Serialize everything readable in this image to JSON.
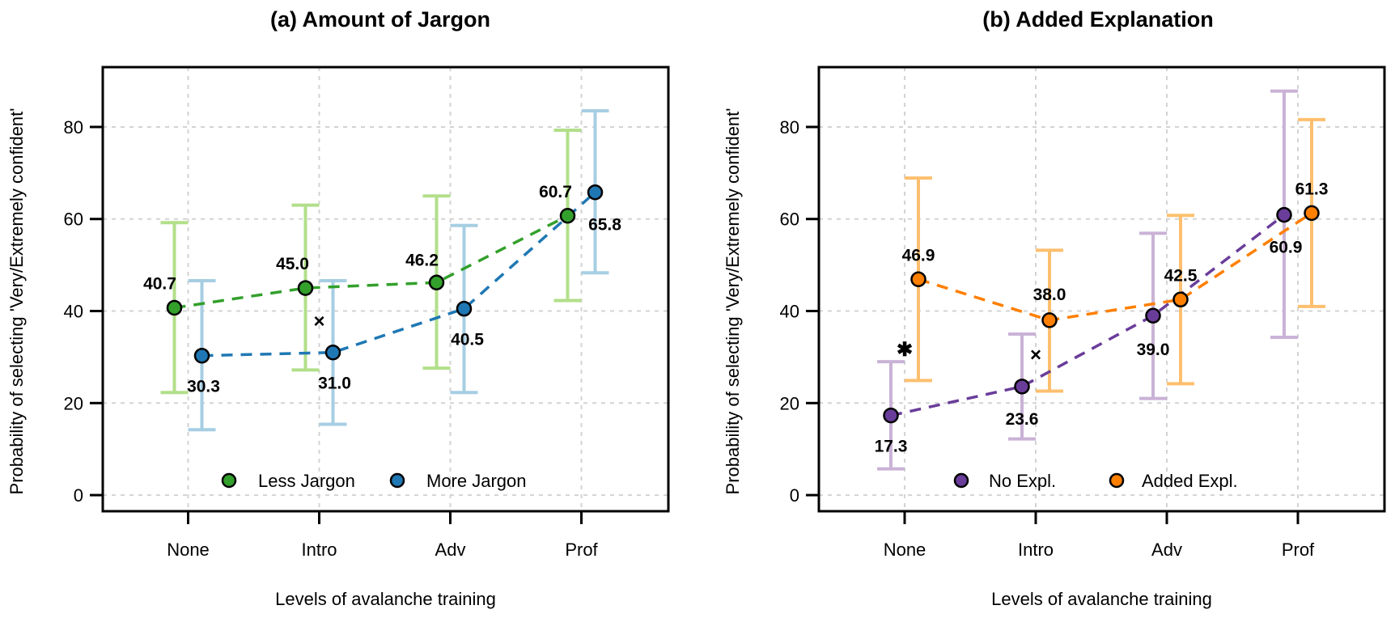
{
  "chart_data": [
    {
      "type": "line",
      "title": "(a) Amount of Jargon",
      "xlabel": "Levels of avalanche training",
      "ylabel": "Probability of selecting 'Very/Extremely confident'",
      "categories": [
        "None",
        "Intro",
        "Adv",
        "Prof"
      ],
      "yticks": [
        0,
        20,
        40,
        60,
        80
      ],
      "ylim": [
        -3.5,
        93
      ],
      "grid": true,
      "legend_position": "bottom-center",
      "series": [
        {
          "name": "Less Jargon",
          "color": "#33a02c",
          "errorbar_color": "#b2df8a",
          "values": [
            40.7,
            45.0,
            46.2,
            60.7
          ],
          "labels": [
            "40.7",
            "45.0",
            "46.2",
            "60.7"
          ],
          "ci_lower": [
            22.3,
            27.2,
            27.6,
            42.3
          ],
          "ci_upper": [
            59.2,
            63.0,
            65.0,
            79.3
          ],
          "label_side": "above"
        },
        {
          "name": "More Jargon",
          "color": "#1f78b4",
          "errorbar_color": "#a6cee3",
          "values": [
            30.3,
            31.0,
            40.5,
            65.8
          ],
          "labels": [
            "30.3",
            "31.0",
            "40.5",
            "65.8"
          ],
          "ci_lower": [
            14.2,
            15.4,
            22.3,
            48.3
          ],
          "ci_upper": [
            46.6,
            46.6,
            58.6,
            83.5
          ],
          "label_side": "below"
        }
      ],
      "annotations": [
        {
          "symbol": "×",
          "category": "Intro",
          "y": 38.0
        }
      ]
    },
    {
      "type": "line",
      "title": "(b) Added Explanation",
      "xlabel": "Levels of avalanche training",
      "ylabel": "Probability of selecting 'Very/Extremely confident'",
      "categories": [
        "None",
        "Intro",
        "Adv",
        "Prof"
      ],
      "yticks": [
        0,
        20,
        40,
        60,
        80
      ],
      "ylim": [
        -3.5,
        93
      ],
      "grid": true,
      "legend_position": "bottom-center",
      "series": [
        {
          "name": "No Expl.",
          "color": "#6a3d9a",
          "errorbar_color": "#cab2d6",
          "values": [
            17.3,
            23.6,
            39.0,
            60.9
          ],
          "labels": [
            "17.3",
            "23.6",
            "39.0",
            "60.9"
          ],
          "ci_lower": [
            5.7,
            12.2,
            21.0,
            34.3
          ],
          "ci_upper": [
            29.0,
            35.0,
            56.9,
            87.8
          ],
          "label_side": "below"
        },
        {
          "name": "Added Expl.",
          "color": "#ff7f00",
          "errorbar_color": "#fdbf6f",
          "values": [
            46.9,
            38.0,
            42.5,
            61.3
          ],
          "labels": [
            "46.9",
            "38.0",
            "42.5",
            "61.3"
          ],
          "ci_lower": [
            24.9,
            22.6,
            24.2,
            41.0
          ],
          "ci_upper": [
            68.9,
            53.2,
            60.8,
            81.6
          ],
          "label_side": "above"
        }
      ],
      "annotations": [
        {
          "symbol": "✱",
          "category": "None",
          "y": 31.8
        },
        {
          "symbol": "×",
          "category": "Intro",
          "y": 30.7
        }
      ]
    }
  ]
}
